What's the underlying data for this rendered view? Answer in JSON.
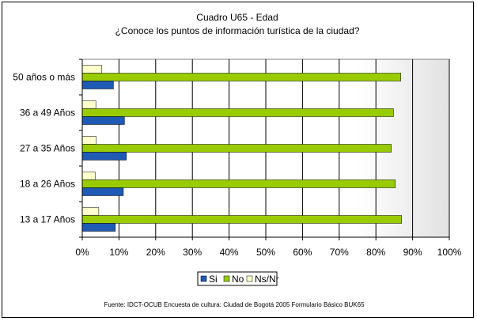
{
  "chart_data": {
    "type": "bar",
    "orientation": "horizontal",
    "title": "Cuadro U65 - Edad",
    "subtitle": "¿Conoce los puntos de información turística de la ciudad?",
    "categories": [
      "13 a 17 Años",
      "18 a 26 Años",
      "27 a 35 Años",
      "36 a 49 Años",
      "50 años o más"
    ],
    "series": [
      {
        "name": "Si",
        "color": "#1f5ab4",
        "values": [
          9.0,
          11.2,
          12.0,
          11.5,
          8.5
        ]
      },
      {
        "name": "No",
        "color": "#99cc00",
        "values": [
          87.0,
          85.3,
          84.2,
          84.8,
          86.8
        ]
      },
      {
        "name": "Ns/Nr",
        "color": "#ffffcc",
        "values": [
          4.5,
          3.5,
          3.8,
          3.7,
          5.3
        ]
      }
    ],
    "xticks": [
      "0%",
      "10%",
      "20%",
      "30%",
      "40%",
      "50%",
      "60%",
      "70%",
      "80%",
      "90%",
      "100%"
    ],
    "xlim": [
      0,
      100
    ],
    "grid": true,
    "legend_position": "bottom",
    "source": "Fuente: IDCT-OCUB Encuesta de cultura: Ciudad de Bogotá 2005 Formulario Básico BUK65"
  }
}
